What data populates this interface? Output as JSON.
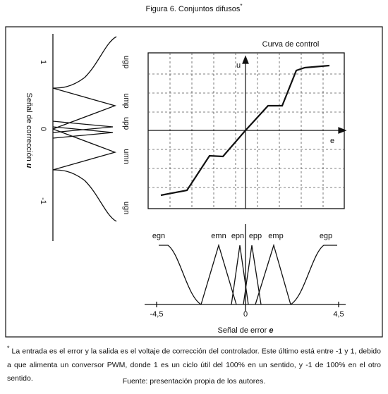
{
  "figure": {
    "title": "Figura 6. Conjuntos difusos",
    "title_mark": "*"
  },
  "correction_panel": {
    "axis_label": "Señal de corrección",
    "axis_var": "u",
    "ticks": [
      "1",
      "0",
      "-1"
    ],
    "sets": [
      "ugp",
      "ump",
      "upp",
      "umn",
      "ugn"
    ]
  },
  "control_panel": {
    "title": "Curva de control",
    "y_label": "u",
    "x_label": "e"
  },
  "error_panel": {
    "sets": [
      "egn",
      "emn",
      "epn",
      "epp",
      "emp",
      "egp"
    ],
    "ticks": [
      "-4,5",
      "0",
      "4,5"
    ],
    "axis_label": "Señal de error",
    "axis_var": "e"
  },
  "footnote": {
    "mark": "*",
    "text": "La entrada es el error y la salida es el voltaje de corrección del controlador. Este último está entre -1 y 1, debido a que alimenta un conversor PWM, donde 1 es un ciclo útil del 100% en un sentido, y -1 de 100% en el otro sentido.",
    "source": "Fuente: presentación propia de los autores."
  }
}
